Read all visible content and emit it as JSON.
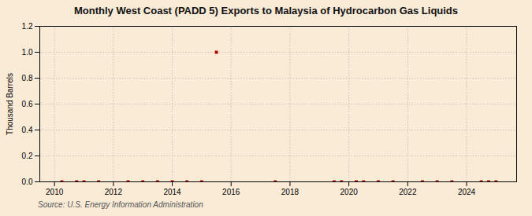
{
  "chart_data": {
    "type": "scatter",
    "title": "Monthly West Coast (PADD 5) Exports to Malaysia of Hydrocarbon Gas Liquids",
    "ylabel": "Thousand Barrels",
    "source": "Source: U.S. Energy Information Administration",
    "x": [
      2010.25,
      2010.75,
      2011.0,
      2011.5,
      2012.5,
      2013.0,
      2013.5,
      2014.0,
      2014.5,
      2015.0,
      2015.5,
      2017.5,
      2019.5,
      2019.75,
      2020.25,
      2020.5,
      2021.0,
      2021.5,
      2022.5,
      2023.0,
      2023.5,
      2024.5,
      2024.75,
      2025.0
    ],
    "values": [
      0.0,
      0.0,
      0.0,
      0.0,
      0.0,
      0.0,
      0.0,
      0.0,
      0.0,
      0.0,
      1.0,
      0.0,
      0.0,
      0.0,
      0.0,
      0.0,
      0.0,
      0.0,
      0.0,
      0.0,
      0.0,
      0.0,
      0.0,
      0.0
    ],
    "color": "#aa0000",
    "marker": "square",
    "xlim": [
      2009.5,
      2025.7
    ],
    "xticks": [
      2010,
      2012,
      2014,
      2016,
      2018,
      2020,
      2022,
      2024
    ],
    "ylim": [
      0.0,
      1.2
    ],
    "yticks": [
      {
        "value": 0.0,
        "label": "0.0"
      },
      0.2,
      0.4,
      0.6,
      0.8,
      {
        "value": 1.0,
        "label": "1.0"
      },
      1.2
    ],
    "grid": true
  }
}
